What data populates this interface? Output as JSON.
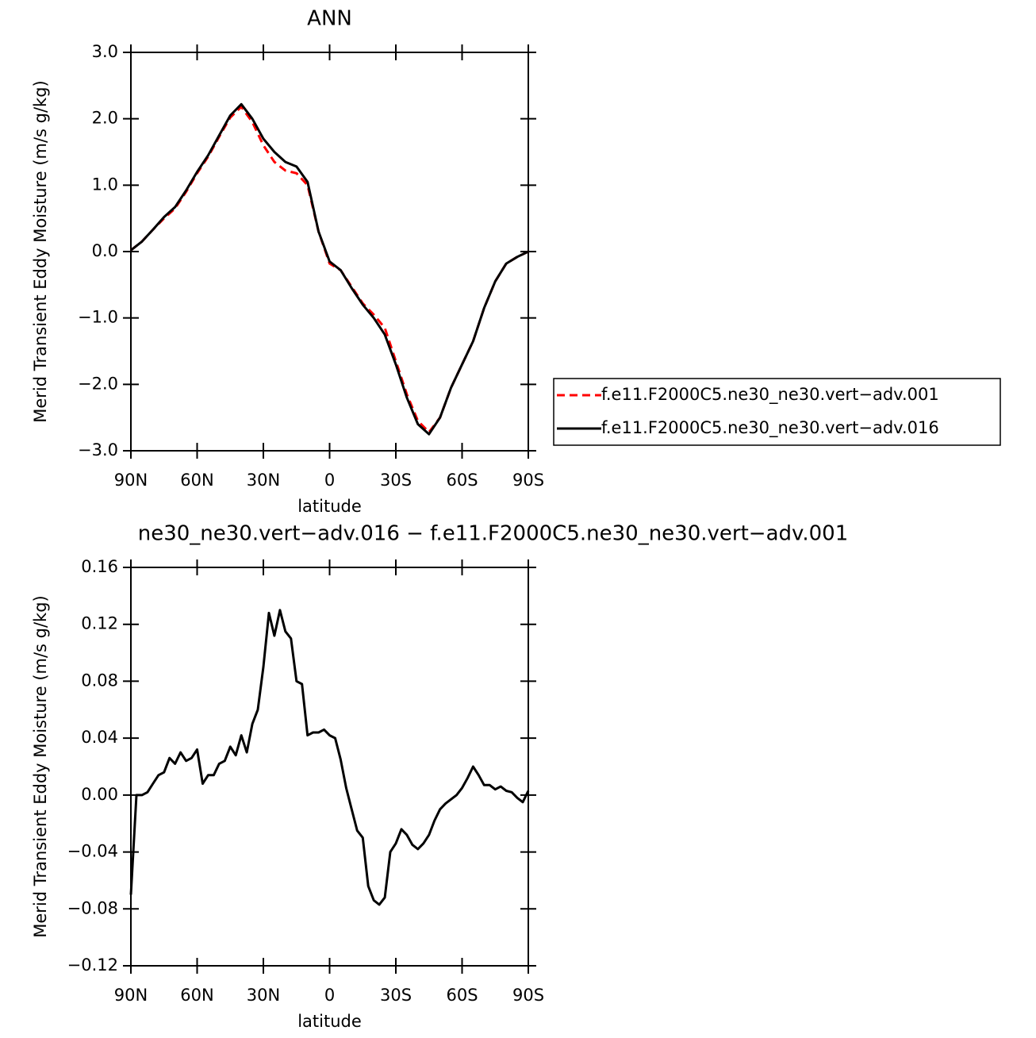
{
  "chart_data": [
    {
      "type": "line",
      "title": "ANN",
      "xlabel": "latitude",
      "ylabel": "Merid Transient Eddy Moisture (m/s g/kg)",
      "x": [
        90,
        85,
        80,
        75,
        70,
        65,
        60,
        55,
        50,
        45,
        40,
        35,
        30,
        25,
        20,
        15,
        10,
        5,
        0,
        -5,
        -10,
        -15,
        -20,
        -25,
        -30,
        -35,
        -40,
        -45,
        -50,
        -55,
        -60,
        -65,
        -70,
        -75,
        -80,
        -85,
        -90
      ],
      "series": [
        {
          "name": "f.e11.F2000C5.ne30_ne30.vert−adv.001",
          "color": "#ff0000",
          "line_style": "dashed",
          "values": [
            0.02,
            0.15,
            0.33,
            0.5,
            0.65,
            0.9,
            1.18,
            1.43,
            1.73,
            2.02,
            2.18,
            1.95,
            1.6,
            1.35,
            1.22,
            1.18,
            1.0,
            0.3,
            -0.18,
            -0.28,
            -0.53,
            -0.78,
            -0.95,
            -1.15,
            -1.65,
            -2.15,
            -2.55,
            -2.72,
            -2.5,
            -2.05,
            -1.7,
            -1.35,
            -0.85,
            -0.45,
            -0.18,
            -0.08,
            0.0
          ]
        },
        {
          "name": "f.e11.F2000C5.ne30_ne30.vert−adv.016",
          "color": "#000000",
          "line_style": "solid",
          "values": [
            0.02,
            0.15,
            0.33,
            0.52,
            0.67,
            0.92,
            1.2,
            1.45,
            1.75,
            2.05,
            2.22,
            2.0,
            1.7,
            1.5,
            1.35,
            1.28,
            1.05,
            0.3,
            -0.15,
            -0.28,
            -0.55,
            -0.8,
            -1.0,
            -1.25,
            -1.7,
            -2.2,
            -2.6,
            -2.75,
            -2.5,
            -2.05,
            -1.7,
            -1.35,
            -0.85,
            -0.45,
            -0.18,
            -0.08,
            0.0
          ]
        }
      ],
      "xlim": [
        90,
        -90
      ],
      "xticks": [
        {
          "value": 90,
          "label": "90N"
        },
        {
          "value": 60,
          "label": "60N"
        },
        {
          "value": 30,
          "label": "30N"
        },
        0,
        {
          "value": -30,
          "label": "30S"
        },
        {
          "value": -60,
          "label": "60S"
        },
        {
          "value": -90,
          "label": "90S"
        }
      ],
      "ylim": [
        -3,
        3
      ],
      "yticks": [
        {
          "value": -3,
          "label": "−3.0"
        },
        {
          "value": -2,
          "label": "−2.0"
        },
        {
          "value": -1,
          "label": "−1.0"
        },
        {
          "value": 0,
          "label": "0.0"
        },
        {
          "value": 1,
          "label": "1.0"
        },
        {
          "value": 2,
          "label": "2.0"
        },
        {
          "value": 3,
          "label": "3.0"
        }
      ],
      "legend": "right"
    },
    {
      "type": "line",
      "title": "ne30_ne30.vert−adv.016 − f.e11.F2000C5.ne30_ne30.vert−adv.001",
      "xlabel": "latitude",
      "ylabel": "Merid Transient Eddy Moisture (m/s g/kg)",
      "x": [
        90,
        87.5,
        85,
        82.5,
        80,
        77.5,
        75,
        72.5,
        70,
        67.5,
        65,
        62.5,
        60,
        57.5,
        55,
        52.5,
        50,
        47.5,
        45,
        42.5,
        40,
        37.5,
        35,
        32.5,
        30,
        27.5,
        25,
        22.5,
        20,
        17.5,
        15,
        12.5,
        10,
        7.5,
        5,
        2.5,
        0,
        -2.5,
        -5,
        -7.5,
        -10,
        -12.5,
        -15,
        -17.5,
        -20,
        -22.5,
        -25,
        -27.5,
        -30,
        -32.5,
        -35,
        -37.5,
        -40,
        -42.5,
        -45,
        -47.5,
        -50,
        -52.5,
        -55,
        -57.5,
        -60,
        -62.5,
        -65,
        -67.5,
        -70,
        -72.5,
        -75,
        -77.5,
        -80,
        -82.5,
        -85,
        -87.5,
        -90
      ],
      "series": [
        {
          "name": null,
          "color": "#000000",
          "line_style": "solid",
          "values": [
            -0.07,
            0.0,
            0.0,
            0.002,
            0.008,
            0.014,
            0.016,
            0.026,
            0.022,
            0.03,
            0.024,
            0.026,
            0.032,
            0.008,
            0.014,
            0.014,
            0.022,
            0.024,
            0.034,
            0.028,
            0.042,
            0.03,
            0.05,
            0.06,
            0.09,
            0.128,
            0.112,
            0.13,
            0.115,
            0.11,
            0.08,
            0.078,
            0.042,
            0.044,
            0.044,
            0.046,
            0.042,
            0.04,
            0.025,
            0.005,
            -0.01,
            -0.025,
            -0.03,
            -0.064,
            -0.074,
            -0.077,
            -0.072,
            -0.04,
            -0.034,
            -0.024,
            -0.028,
            -0.035,
            -0.038,
            -0.034,
            -0.028,
            -0.018,
            -0.01,
            -0.006,
            -0.003,
            0.0,
            0.005,
            0.012,
            0.02,
            0.014,
            0.007,
            0.007,
            0.004,
            0.006,
            0.003,
            0.002,
            -0.002,
            -0.005,
            0.003
          ]
        }
      ],
      "xlim": [
        90,
        -90
      ],
      "xticks": [
        {
          "value": 90,
          "label": "90N"
        },
        {
          "value": 60,
          "label": "60N"
        },
        {
          "value": 30,
          "label": "30N"
        },
        0,
        {
          "value": -30,
          "label": "30S"
        },
        {
          "value": -60,
          "label": "60S"
        },
        {
          "value": -90,
          "label": "90S"
        }
      ],
      "ylim": [
        -0.12,
        0.16
      ],
      "yticks": [
        {
          "value": -0.12,
          "label": "−0.12"
        },
        {
          "value": -0.08,
          "label": "−0.08"
        },
        {
          "value": -0.04,
          "label": "−0.04"
        },
        {
          "value": 0,
          "label": "0.00"
        },
        0.04,
        0.08,
        0.12,
        0.16
      ]
    }
  ]
}
